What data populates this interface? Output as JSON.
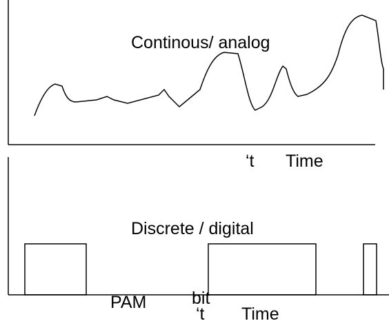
{
  "top_panel": {
    "label": "Continous/ analog",
    "axis_marker": "‘t",
    "axis_label": "Time"
  },
  "bottom_panel": {
    "label": "Discrete / digital",
    "pam_label": "PAM",
    "bit_label": "bit",
    "axis_marker": "‘t",
    "axis_label": "Time"
  }
}
